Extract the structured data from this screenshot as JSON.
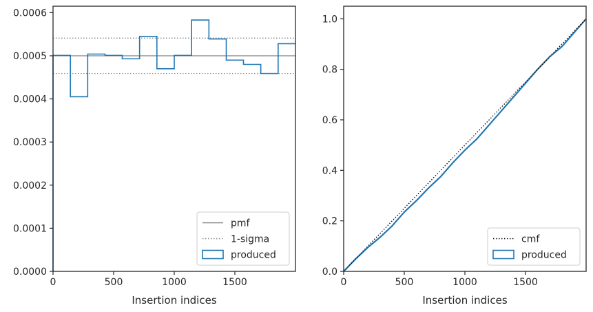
{
  "colors": {
    "produced": "#1f77b4",
    "pmf": "#808080",
    "sigma": "#808080",
    "cmf": "#000000",
    "axes": "#262626"
  },
  "chart_data": [
    {
      "type": "step",
      "xlabel": "Insertion indices",
      "ylabel": "",
      "xlim": [
        0,
        2000
      ],
      "ylim": [
        0,
        0.000615
      ],
      "xticks": [
        0,
        500,
        1000,
        1500
      ],
      "xtick_labels": [
        "0",
        "500",
        "1000",
        "1500"
      ],
      "yticks": [
        0,
        0.0001,
        0.0002,
        0.0003,
        0.0004,
        0.0005,
        0.0006
      ],
      "ytick_labels": [
        "0.0000",
        "0.0001",
        "0.0002",
        "0.0003",
        "0.0004",
        "0.0005",
        "0.0006"
      ],
      "grid": false,
      "legend_position": "lower-right",
      "legend": [
        {
          "key": "pmf",
          "label": "pmf",
          "style": "solid-line"
        },
        {
          "key": "sigma",
          "label": "1-sigma",
          "style": "dotted-line"
        },
        {
          "key": "produced",
          "label": "produced",
          "style": "patch"
        }
      ],
      "pmf": 0.0005,
      "sigma_band": [
        0.000459,
        0.000541
      ],
      "produced": {
        "edges": [
          0,
          143,
          286,
          429,
          571,
          714,
          857,
          1000,
          1143,
          1286,
          1429,
          1571,
          1714,
          1857,
          2000
        ],
        "values": [
          0.000501,
          0.000405,
          0.000504,
          0.000501,
          0.000493,
          0.000545,
          0.00047,
          0.000501,
          0.000583,
          0.000539,
          0.00049,
          0.00048,
          0.000459,
          0.000528
        ]
      }
    },
    {
      "type": "line",
      "xlabel": "Insertion indices",
      "ylabel": "",
      "xlim": [
        0,
        2000
      ],
      "ylim": [
        0,
        1.05
      ],
      "xticks": [
        0,
        500,
        1000,
        1500
      ],
      "xtick_labels": [
        "0",
        "500",
        "1000",
        "1500"
      ],
      "yticks": [
        0,
        0.2,
        0.4,
        0.6,
        0.8,
        1.0
      ],
      "ytick_labels": [
        "0.0",
        "0.2",
        "0.4",
        "0.6",
        "0.8",
        "1.0"
      ],
      "grid": false,
      "legend_position": "lower-right",
      "legend": [
        {
          "key": "cmf",
          "label": "cmf",
          "style": "dotted-line"
        },
        {
          "key": "produced",
          "label": "produced",
          "style": "patch"
        }
      ],
      "cmf": {
        "x": [
          0,
          2000
        ],
        "y": [
          0,
          1.0
        ]
      },
      "produced": {
        "x": [
          0,
          100,
          200,
          300,
          400,
          500,
          600,
          700,
          800,
          900,
          1000,
          1100,
          1200,
          1300,
          1400,
          1500,
          1600,
          1700,
          1800,
          1900,
          2000
        ],
        "y": [
          0,
          0.05,
          0.095,
          0.135,
          0.18,
          0.235,
          0.28,
          0.33,
          0.375,
          0.43,
          0.48,
          0.525,
          0.58,
          0.635,
          0.69,
          0.745,
          0.8,
          0.85,
          0.89,
          0.945,
          1.0
        ]
      }
    }
  ]
}
